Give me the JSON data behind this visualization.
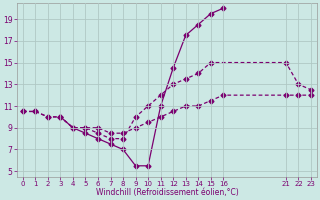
{
  "background_color": "#cce8e4",
  "line_color": "#7b0070",
  "grid_color": "#b0c8c4",
  "title": "Windchill (Refroidissement éolien,°C)",
  "xlim": [
    -0.5,
    23.5
  ],
  "ylim": [
    4.5,
    20.5
  ],
  "xticks": [
    0,
    1,
    2,
    3,
    4,
    5,
    6,
    7,
    8,
    9,
    10,
    11,
    12,
    13,
    14,
    15,
    16,
    21,
    22,
    23
  ],
  "yticks": [
    5,
    7,
    9,
    11,
    13,
    15,
    17,
    19
  ],
  "line1_x": [
    3,
    4,
    5,
    6,
    7,
    8,
    9,
    10,
    11,
    12,
    13,
    14,
    15,
    16
  ],
  "line1_y": [
    10.0,
    9.0,
    8.5,
    8.0,
    7.5,
    7.0,
    5.5,
    5.5,
    11.0,
    14.5,
    17.5,
    18.5,
    19.5,
    20.0
  ],
  "line2_x": [
    0,
    1,
    2,
    3,
    4,
    5,
    6,
    7,
    8,
    9,
    10,
    11,
    12,
    13,
    14,
    15,
    21,
    22,
    23
  ],
  "line2_y": [
    10.5,
    10.5,
    10.0,
    10.0,
    9.0,
    9.0,
    8.5,
    8.0,
    8.0,
    10.0,
    11.0,
    12.0,
    13.0,
    13.5,
    14.0,
    15.0,
    15.0,
    13.0,
    12.5
  ],
  "line3_x": [
    0,
    1,
    2,
    3,
    4,
    5,
    6,
    7,
    8,
    9,
    10,
    11,
    12,
    13,
    14,
    15,
    16,
    21,
    22,
    23
  ],
  "line3_y": [
    10.5,
    10.5,
    10.0,
    10.0,
    9.0,
    9.0,
    9.0,
    8.5,
    8.5,
    9.0,
    9.5,
    10.0,
    10.5,
    11.0,
    11.0,
    11.5,
    12.0,
    12.0,
    12.0,
    12.0
  ]
}
